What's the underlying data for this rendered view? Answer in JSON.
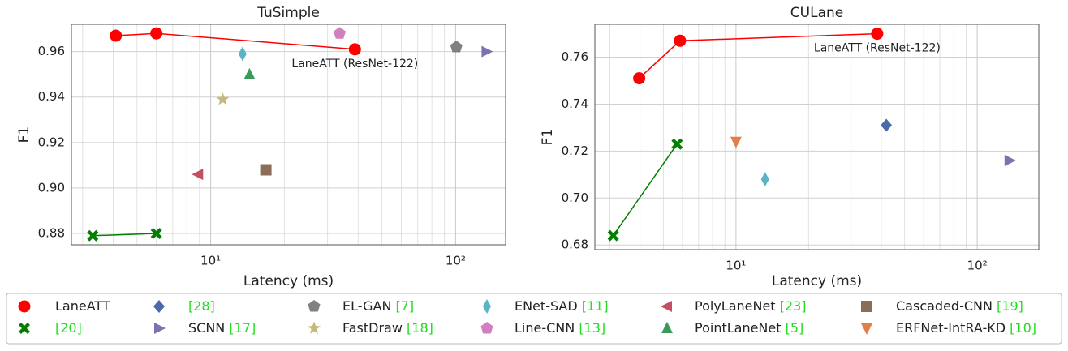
{
  "chart_data": [
    {
      "type": "scatter",
      "title": "TuSimple",
      "x_label": "Latency (ms)",
      "y_label": "F1",
      "xscale": "log",
      "xlim": [
        2.7,
        160
      ],
      "ylim": [
        0.875,
        0.972
      ],
      "xticks": [
        {
          "value": 10,
          "label": "10¹"
        },
        {
          "value": 100,
          "label": "10²"
        }
      ],
      "yticks": [
        0.88,
        {
          "value": 0.9,
          "label": "0.90"
        },
        0.92,
        0.94,
        0.96
      ],
      "grid": true,
      "minor_grid": true,
      "annotations": [
        "LaneATT (ResNet-122)"
      ],
      "series": [
        {
          "name": "LaneATT",
          "x": [
            4.1,
            6.0,
            38.8
          ],
          "values": [
            0.967,
            0.968,
            0.961
          ],
          "line": true
        },
        {
          "name": "[20]",
          "x": [
            3.3,
            6.0
          ],
          "values": [
            0.879,
            0.88
          ],
          "line": true
        },
        {
          "name": "SCNN [17]",
          "x": [
            133.6
          ],
          "values": [
            0.96
          ]
        },
        {
          "name": "EL-GAN [7]",
          "x": [
            100.7
          ],
          "values": [
            0.962
          ]
        },
        {
          "name": "Line-CNN [13]",
          "x": [
            33.6
          ],
          "values": [
            0.968
          ]
        },
        {
          "name": "ENet-SAD [11]",
          "x": [
            13.5
          ],
          "values": [
            0.959
          ]
        },
        {
          "name": "PointLaneNet [5]",
          "x": [
            14.4
          ],
          "values": [
            0.95
          ]
        },
        {
          "name": "FastDraw [18]",
          "x": [
            11.2
          ],
          "values": [
            0.939
          ]
        },
        {
          "name": "PolyLaneNet [23]",
          "x": [
            8.9
          ],
          "values": [
            0.906
          ]
        },
        {
          "name": "Cascaded-CNN [19]",
          "x": [
            16.8
          ],
          "values": [
            0.908
          ]
        }
      ]
    },
    {
      "type": "scatter",
      "title": "CULane",
      "x_label": "Latency (ms)",
      "y_label": "F1",
      "xscale": "log",
      "xlim": [
        2.6,
        180
      ],
      "ylim": [
        0.678,
        0.774
      ],
      "xticks": [
        {
          "value": 10,
          "label": "10¹"
        },
        {
          "value": 100,
          "label": "10²"
        }
      ],
      "yticks": [
        0.68,
        {
          "value": 0.7,
          "label": "0.70"
        },
        0.72,
        0.74,
        0.76
      ],
      "grid": true,
      "minor_grid": true,
      "annotations": [
        "LaneATT (ResNet-122)"
      ],
      "series": [
        {
          "name": "LaneATT",
          "x": [
            3.97,
            5.86,
            38.5
          ],
          "values": [
            0.751,
            0.767,
            0.77
          ],
          "line": true
        },
        {
          "name": "[20]",
          "x": [
            3.1,
            5.7
          ],
          "values": [
            0.684,
            0.723
          ],
          "line": true
        },
        {
          "name": "[28]",
          "x": [
            42
          ],
          "values": [
            0.731
          ]
        },
        {
          "name": "SCNN [17]",
          "x": [
            136
          ],
          "values": [
            0.716
          ]
        },
        {
          "name": "ERFNet-IntRA-KD [10]",
          "x": [
            10
          ],
          "values": [
            0.724
          ]
        },
        {
          "name": "ENet-SAD [11]",
          "x": [
            13.2
          ],
          "values": [
            0.708
          ]
        }
      ]
    }
  ],
  "legend": {
    "ref_color": "#22dd22",
    "entries": [
      {
        "name": "LaneATT",
        "color": "#ff0000",
        "marker": "circle"
      },
      {
        "name": "[28]",
        "color": "#4a6aaa",
        "marker": "diamond"
      },
      {
        "name": "EL-GAN [7]",
        "color": "#808080",
        "marker": "pentagon"
      },
      {
        "name": "ENet-SAD [11]",
        "color": "#5ab4c4",
        "marker": "thin_diamond"
      },
      {
        "name": "PolyLaneNet [23]",
        "color": "#c44e62",
        "marker": "triangle_left"
      },
      {
        "name": "Cascaded-CNN [19]",
        "color": "#8c6d5a",
        "marker": "square"
      },
      {
        "name": "[20]",
        "color": "#007f00",
        "marker": "x"
      },
      {
        "name": "SCNN [17]",
        "color": "#7b72b0",
        "marker": "triangle_right"
      },
      {
        "name": "FastDraw [18]",
        "color": "#c4b87a",
        "marker": "star"
      },
      {
        "name": "Line-CNN [13]",
        "color": "#d27fbf",
        "marker": "pentagon"
      },
      {
        "name": "PointLaneNet [5]",
        "color": "#3a9a5a",
        "marker": "triangle_up"
      },
      {
        "name": "ERFNet-IntRA-KD [10]",
        "color": "#e07f4a",
        "marker": "triangle_down"
      }
    ]
  }
}
